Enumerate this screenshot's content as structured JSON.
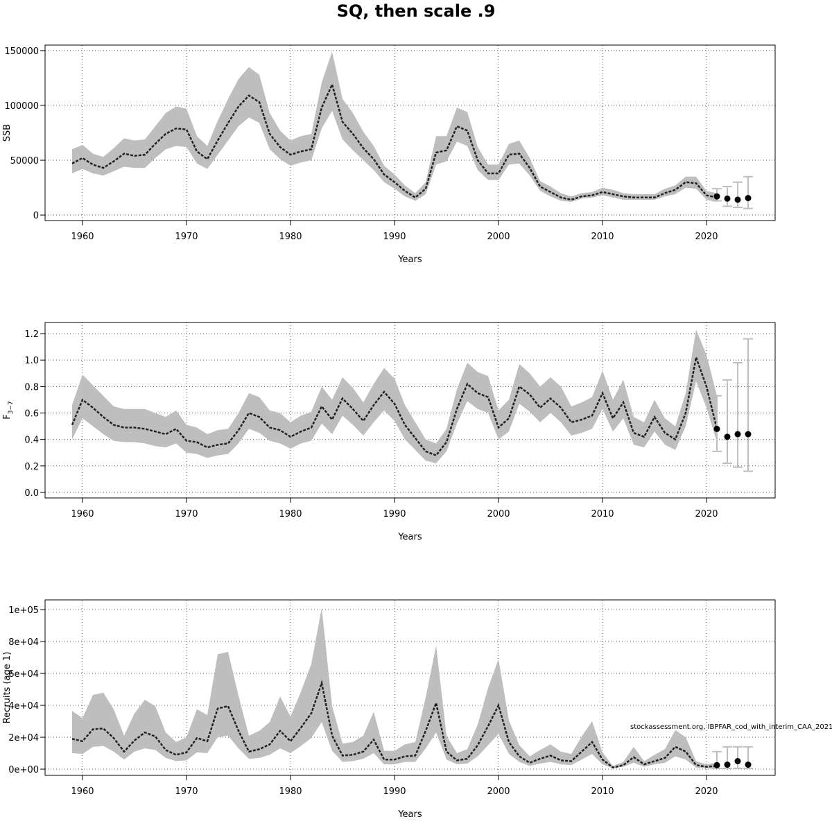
{
  "title": "SQ, then scale .9",
  "chart_data": [
    {
      "type": "line",
      "x_label": "Years",
      "y_label": "SSB",
      "x": [
        1959,
        1960,
        1961,
        1962,
        1963,
        1964,
        1965,
        1966,
        1967,
        1968,
        1969,
        1970,
        1971,
        1972,
        1973,
        1974,
        1975,
        1976,
        1977,
        1978,
        1979,
        1980,
        1981,
        1982,
        1983,
        1984,
        1985,
        1986,
        1987,
        1988,
        1989,
        1990,
        1991,
        1992,
        1993,
        1994,
        1995,
        1996,
        1997,
        1998,
        1999,
        2000,
        2001,
        2002,
        2003,
        2004,
        2005,
        2006,
        2007,
        2008,
        2009,
        2010,
        2011,
        2012,
        2013,
        2014,
        2015,
        2016,
        2017,
        2018,
        2019,
        2020,
        2021
      ],
      "xlim": [
        1956.4,
        2026.6
      ],
      "xticks": [
        1960,
        1970,
        1980,
        1990,
        2000,
        2010,
        2020
      ],
      "ylim": [
        -5000,
        155000
      ],
      "yticks": [
        0,
        50000,
        100000,
        150000
      ],
      "grid": true,
      "series": [
        {
          "color": "#222222",
          "values": [
            47000,
            52000,
            46000,
            43000,
            49000,
            56000,
            54000,
            55000,
            65000,
            74000,
            79000,
            78000,
            58000,
            51000,
            68000,
            84000,
            99000,
            109000,
            103000,
            74000,
            62000,
            55000,
            58000,
            60000,
            98000,
            119000,
            85000,
            74000,
            61000,
            51000,
            37000,
            30000,
            22000,
            16000,
            24000,
            57000,
            59000,
            81000,
            77000,
            50000,
            38000,
            38000,
            55000,
            56000,
            43000,
            26000,
            21000,
            16000,
            14000,
            17000,
            18000,
            21000,
            19000,
            17000,
            16000,
            16000,
            16000,
            20000,
            23000,
            30000,
            29000,
            18000,
            16000
          ]
        }
      ],
      "band": {
        "color": "#bebebe",
        "lower": [
          38000,
          42000,
          38000,
          36000,
          40000,
          44000,
          43000,
          43000,
          52000,
          60000,
          63000,
          62000,
          47000,
          42000,
          55000,
          68000,
          81000,
          89000,
          84000,
          60000,
          51000,
          45000,
          48000,
          50000,
          79000,
          95000,
          69000,
          59000,
          50000,
          41000,
          30000,
          24000,
          17000,
          13000,
          19000,
          46000,
          49000,
          67000,
          63000,
          41000,
          32000,
          32000,
          46000,
          47000,
          36000,
          22000,
          17000,
          13000,
          12000,
          15000,
          16000,
          18000,
          16000,
          14000,
          14000,
          14000,
          14000,
          17000,
          19000,
          25000,
          24000,
          14000,
          12000
        ],
        "upper": [
          60000,
          64000,
          56000,
          53000,
          61000,
          70000,
          68000,
          69000,
          81000,
          93000,
          99000,
          97000,
          72000,
          63000,
          86000,
          106000,
          124000,
          135000,
          128000,
          93000,
          77000,
          68000,
          72000,
          74000,
          121000,
          149000,
          106000,
          93000,
          76000,
          63000,
          45000,
          37000,
          27000,
          20000,
          30000,
          72000,
          72000,
          98000,
          94000,
          62000,
          46000,
          46000,
          65000,
          68000,
          52000,
          31000,
          26000,
          20000,
          17000,
          20000,
          21000,
          25000,
          23000,
          20000,
          19000,
          19000,
          19000,
          24000,
          27000,
          35000,
          35000,
          22000,
          20000
        ]
      },
      "projections": {
        "color": "#000000",
        "bar_color": "#bebebe",
        "x": [
          2021,
          2022,
          2023,
          2024
        ],
        "values": [
          17000,
          15000,
          14000,
          15500
        ],
        "lower": [
          13000,
          8000,
          7000,
          6000
        ],
        "upper": [
          24000,
          26000,
          30000,
          35000
        ]
      }
    },
    {
      "type": "line",
      "x_label": "Years",
      "y_label": "F",
      "y_label_subscript": "3−7",
      "x": [
        1959,
        1960,
        1961,
        1962,
        1963,
        1964,
        1965,
        1966,
        1967,
        1968,
        1969,
        1970,
        1971,
        1972,
        1973,
        1974,
        1975,
        1976,
        1977,
        1978,
        1979,
        1980,
        1981,
        1982,
        1983,
        1984,
        1985,
        1986,
        1987,
        1988,
        1989,
        1990,
        1991,
        1992,
        1993,
        1994,
        1995,
        1996,
        1997,
        1998,
        1999,
        2000,
        2001,
        2002,
        2003,
        2004,
        2005,
        2006,
        2007,
        2008,
        2009,
        2010,
        2011,
        2012,
        2013,
        2014,
        2015,
        2016,
        2017,
        2018,
        2019,
        2020,
        2021
      ],
      "xlim": [
        1956.4,
        2026.6
      ],
      "xticks": [
        1960,
        1970,
        1980,
        1990,
        2000,
        2010,
        2020
      ],
      "ylim": [
        -0.042,
        1.284
      ],
      "yticks": [
        {
          "value": 0,
          "label": "0.0"
        },
        0.2,
        0.4,
        0.6,
        0.8,
        {
          "value": 1,
          "label": "1.0"
        },
        1.2
      ],
      "grid": true,
      "series": [
        {
          "color": "#222222",
          "values": [
            0.51,
            0.7,
            0.64,
            0.57,
            0.51,
            0.49,
            0.49,
            0.48,
            0.46,
            0.44,
            0.48,
            0.39,
            0.38,
            0.34,
            0.36,
            0.37,
            0.47,
            0.6,
            0.57,
            0.49,
            0.47,
            0.42,
            0.46,
            0.49,
            0.65,
            0.55,
            0.71,
            0.63,
            0.54,
            0.66,
            0.76,
            0.67,
            0.51,
            0.41,
            0.31,
            0.28,
            0.38,
            0.63,
            0.82,
            0.75,
            0.72,
            0.49,
            0.56,
            0.8,
            0.74,
            0.64,
            0.71,
            0.64,
            0.53,
            0.55,
            0.58,
            0.75,
            0.56,
            0.68,
            0.45,
            0.42,
            0.57,
            0.45,
            0.4,
            0.6,
            1.02,
            0.8,
            0.48
          ]
        }
      ],
      "band": {
        "color": "#bebebe",
        "lower": [
          0.4,
          0.56,
          0.5,
          0.44,
          0.39,
          0.38,
          0.38,
          0.37,
          0.35,
          0.34,
          0.37,
          0.3,
          0.29,
          0.26,
          0.28,
          0.29,
          0.37,
          0.48,
          0.45,
          0.39,
          0.37,
          0.33,
          0.37,
          0.39,
          0.52,
          0.44,
          0.58,
          0.51,
          0.43,
          0.53,
          0.62,
          0.54,
          0.4,
          0.32,
          0.24,
          0.22,
          0.31,
          0.52,
          0.69,
          0.63,
          0.6,
          0.4,
          0.46,
          0.67,
          0.61,
          0.53,
          0.6,
          0.53,
          0.43,
          0.45,
          0.48,
          0.63,
          0.46,
          0.56,
          0.36,
          0.34,
          0.46,
          0.36,
          0.32,
          0.5,
          0.84,
          0.64,
          0.38
        ],
        "upper": [
          0.66,
          0.89,
          0.81,
          0.73,
          0.65,
          0.63,
          0.63,
          0.63,
          0.6,
          0.57,
          0.62,
          0.51,
          0.49,
          0.44,
          0.47,
          0.48,
          0.6,
          0.75,
          0.72,
          0.62,
          0.6,
          0.53,
          0.58,
          0.61,
          0.8,
          0.7,
          0.87,
          0.79,
          0.68,
          0.82,
          0.94,
          0.86,
          0.66,
          0.53,
          0.4,
          0.37,
          0.48,
          0.78,
          0.98,
          0.91,
          0.88,
          0.62,
          0.7,
          0.97,
          0.9,
          0.8,
          0.87,
          0.8,
          0.65,
          0.68,
          0.72,
          0.92,
          0.7,
          0.85,
          0.57,
          0.53,
          0.7,
          0.56,
          0.5,
          0.75,
          1.23,
          1.04,
          0.73
        ]
      },
      "projections": {
        "color": "#000000",
        "bar_color": "#bebebe",
        "x": [
          2021,
          2022,
          2023,
          2024
        ],
        "values": [
          0.48,
          0.42,
          0.44,
          0.44
        ],
        "lower": [
          0.31,
          0.22,
          0.19,
          0.16
        ],
        "upper": [
          0.73,
          0.85,
          0.98,
          1.16
        ]
      }
    },
    {
      "type": "line",
      "x_label": "Years",
      "y_label": "Recruits (age 1)",
      "annotation": "stockassessment.org, IBPFAR_cod_with_interim_CAA_2021",
      "x": [
        1959,
        1960,
        1961,
        1962,
        1963,
        1964,
        1965,
        1966,
        1967,
        1968,
        1969,
        1970,
        1971,
        1972,
        1973,
        1974,
        1975,
        1976,
        1977,
        1978,
        1979,
        1980,
        1981,
        1982,
        1983,
        1984,
        1985,
        1986,
        1987,
        1988,
        1989,
        1990,
        1991,
        1992,
        1993,
        1994,
        1995,
        1996,
        1997,
        1998,
        1999,
        2000,
        2001,
        2002,
        2003,
        2004,
        2005,
        2006,
        2007,
        2008,
        2009,
        2010,
        2011,
        2012,
        2013,
        2014,
        2015,
        2016,
        2017,
        2018,
        2019,
        2020,
        2021
      ],
      "xlim": [
        1956.4,
        2026.6
      ],
      "xticks": [
        1960,
        1970,
        1980,
        1990,
        2000,
        2010,
        2020
      ],
      "ylim": [
        -3900,
        106100
      ],
      "yticks": [
        {
          "value": 0,
          "label": "0e+00"
        },
        {
          "value": 20000,
          "label": "2e+04"
        },
        {
          "value": 40000,
          "label": "4e+04"
        },
        {
          "value": 60000,
          "label": "6e+04"
        },
        {
          "value": 80000,
          "label": "8e+04"
        },
        {
          "value": 100000,
          "label": "1e+05"
        }
      ],
      "grid": true,
      "series": [
        {
          "color": "#222222",
          "values": [
            19000,
            17500,
            25000,
            25500,
            19500,
            11000,
            18000,
            23000,
            20500,
            12000,
            9000,
            10500,
            19500,
            17500,
            38000,
            39500,
            24000,
            11000,
            12500,
            15500,
            24000,
            17500,
            26000,
            35000,
            54000,
            21000,
            8500,
            9000,
            11000,
            18500,
            6000,
            6000,
            8000,
            8500,
            24000,
            41500,
            11000,
            5500,
            6500,
            15000,
            27000,
            40000,
            17000,
            8000,
            4000,
            6500,
            8500,
            5500,
            5000,
            11000,
            17000,
            6000,
            1000,
            2500,
            7500,
            3000,
            5000,
            7000,
            14000,
            11000,
            2500,
            1500,
            2000
          ]
        }
      ],
      "band": {
        "color": "#bebebe",
        "lower": [
          10000,
          9500,
          14000,
          14500,
          11000,
          6000,
          11000,
          13000,
          12000,
          7000,
          5000,
          5500,
          10500,
          10000,
          20000,
          21000,
          13000,
          6500,
          7000,
          9000,
          13000,
          10000,
          14500,
          19500,
          29500,
          11500,
          4500,
          5000,
          6500,
          10000,
          3000,
          3000,
          4500,
          4500,
          13000,
          23000,
          6000,
          3000,
          3500,
          8000,
          15000,
          22000,
          9500,
          4500,
          2000,
          3500,
          4500,
          3000,
          2500,
          6000,
          9500,
          3000,
          500,
          1500,
          4000,
          1500,
          3000,
          4000,
          8000,
          6000,
          1000,
          500,
          500
        ],
        "upper": [
          36500,
          32000,
          46500,
          48000,
          37500,
          21000,
          35000,
          43500,
          39500,
          23000,
          17000,
          20000,
          37500,
          34000,
          72000,
          73500,
          46000,
          21000,
          24000,
          29500,
          45500,
          33000,
          48500,
          66000,
          101000,
          39500,
          16000,
          17000,
          21000,
          36000,
          11500,
          11500,
          15500,
          17000,
          45000,
          77500,
          21000,
          10000,
          12500,
          28000,
          51000,
          69000,
          30500,
          15000,
          8000,
          12000,
          15500,
          11000,
          9500,
          20500,
          30000,
          10500,
          2000,
          4500,
          14000,
          5000,
          9000,
          12500,
          24500,
          20000,
          5000,
          3000,
          4000
        ]
      },
      "projections": {
        "color": "#000000",
        "bar_color": "#bebebe",
        "x": [
          2021,
          2022,
          2023,
          2024
        ],
        "values": [
          2500,
          2800,
          5000,
          2800
        ],
        "lower": [
          500,
          500,
          500,
          500
        ],
        "upper": [
          11000,
          14000,
          14000,
          14000
        ]
      }
    }
  ]
}
